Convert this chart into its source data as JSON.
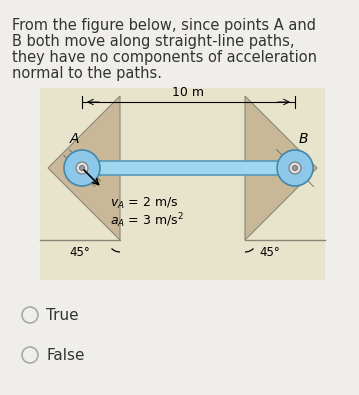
{
  "question_text_lines": [
    "From the figure below, since points A and",
    "B both move along straight-line paths,",
    "they have no components of acceleration",
    "normal to the paths."
  ],
  "dim_label": "10 m",
  "point_A_label": "A",
  "point_B_label": "B",
  "angle_left": "45°",
  "angle_right": "45°",
  "option_true": "True",
  "option_false": "False",
  "bg_color": "#eeecdf",
  "rod_color": "#9fd8ee",
  "rod_edge_color": "#5599bb",
  "wheel_color": "#8ec8e8",
  "wheel_edge": "#4488aa",
  "wall_color": "#c8b898",
  "wall_edge": "#888878",
  "text_color": "#333333",
  "fig_bg": "#f0eeea",
  "question_fontsize": 10.5,
  "label_fontsize": 10,
  "diagram_bg": "#e8e4cc"
}
